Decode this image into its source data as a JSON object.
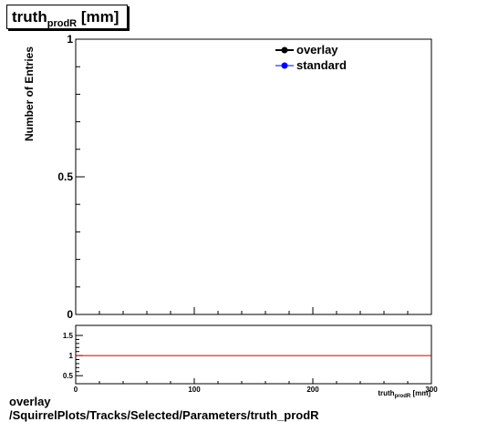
{
  "title": {
    "main": "truth",
    "sub": "prodR",
    "unit": "[mm]"
  },
  "footer": {
    "line1": "overlay",
    "line2": "/SquirrelPlots/Tracks/Selected/Parameters/truth_prodR"
  },
  "colors": {
    "overlay": "#000000",
    "standard": "#0000ff",
    "ratio_line": "#cc0000"
  },
  "chart_data": [
    {
      "type": "line",
      "ylabel": "Number of Entries",
      "xlim": [
        0,
        300
      ],
      "ylim": [
        0,
        1
      ],
      "yticks": [
        "0",
        "0.5",
        "1"
      ],
      "grid": false,
      "legend_position": "top-right",
      "series": [
        {
          "name": "overlay",
          "x": [],
          "y": []
        },
        {
          "name": "standard",
          "x": [],
          "y": []
        }
      ]
    },
    {
      "type": "line",
      "xlabel": "truth_prodR [mm]",
      "xlim": [
        0,
        300
      ],
      "ylim": [
        0.3,
        1.75
      ],
      "xticks": [
        "0",
        "100",
        "200",
        "300"
      ],
      "yticks": [
        "0.5",
        "1",
        "1.5"
      ],
      "reference_line": 1
    }
  ]
}
